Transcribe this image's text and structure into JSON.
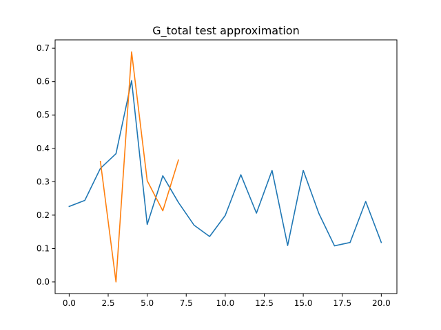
{
  "chart_data": {
    "type": "line",
    "title": "G_total test approximation",
    "xlabel": "",
    "ylabel": "",
    "xlim": [
      -0.9,
      21.0
    ],
    "ylim": [
      -0.035,
      0.725
    ],
    "xticks": [
      0.0,
      2.5,
      5.0,
      7.5,
      10.0,
      12.5,
      15.0,
      17.5,
      20.0
    ],
    "xtick_labels": [
      "0.0",
      "2.5",
      "5.0",
      "7.5",
      "10.0",
      "12.5",
      "15.0",
      "17.5",
      "20.0"
    ],
    "yticks": [
      0.0,
      0.1,
      0.2,
      0.3,
      0.4,
      0.5,
      0.6,
      0.7
    ],
    "ytick_labels": [
      "0.0",
      "0.1",
      "0.2",
      "0.3",
      "0.4",
      "0.5",
      "0.6",
      "0.7"
    ],
    "grid": false,
    "series": [
      {
        "color": "#1f77b4",
        "x": [
          0,
          1,
          2,
          3,
          4,
          5,
          6,
          7,
          8,
          9,
          10,
          11,
          12,
          13,
          14,
          15,
          16,
          17,
          18,
          19,
          20
        ],
        "y": [
          0.226,
          0.244,
          0.34,
          0.384,
          0.603,
          0.172,
          0.318,
          0.238,
          0.17,
          0.136,
          0.199,
          0.321,
          0.206,
          0.334,
          0.109,
          0.334,
          0.205,
          0.108,
          0.118,
          0.241,
          0.118
        ]
      },
      {
        "color": "#ff7f0e",
        "x": [
          2,
          3,
          4,
          5,
          6,
          7
        ],
        "y": [
          0.361,
          0.0,
          0.689,
          0.303,
          0.213,
          0.365
        ]
      }
    ]
  }
}
